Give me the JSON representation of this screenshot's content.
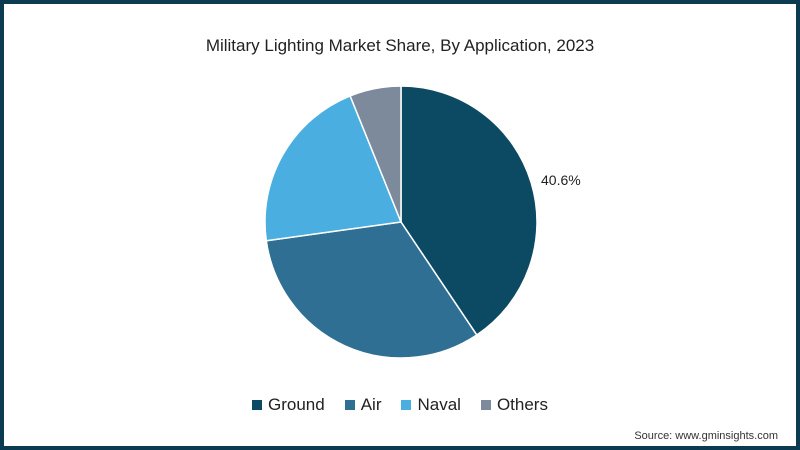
{
  "chart_data": {
    "type": "pie",
    "title": "Military Lighting Market Share, By Application, 2023",
    "categories": [
      "Ground",
      "Air",
      "Naval",
      "Others"
    ],
    "values": [
      40.6,
      32.2,
      21.1,
      6.1
    ],
    "colors": [
      "#0b4a62",
      "#2f6f93",
      "#4aaee0",
      "#7d8a9c"
    ],
    "data_labels": [
      {
        "category": "Ground",
        "text": "40.6%"
      }
    ],
    "legend_position": "bottom",
    "source": "Source: www.gminsights.com"
  },
  "labels": {
    "ground_pct": "40.6%"
  },
  "legend": [
    {
      "label": "Ground",
      "color": "#0b4a62"
    },
    {
      "label": "Air",
      "color": "#2f6f93"
    },
    {
      "label": "Naval",
      "color": "#4aaee0"
    },
    {
      "label": "Others",
      "color": "#7d8a9c"
    }
  ]
}
